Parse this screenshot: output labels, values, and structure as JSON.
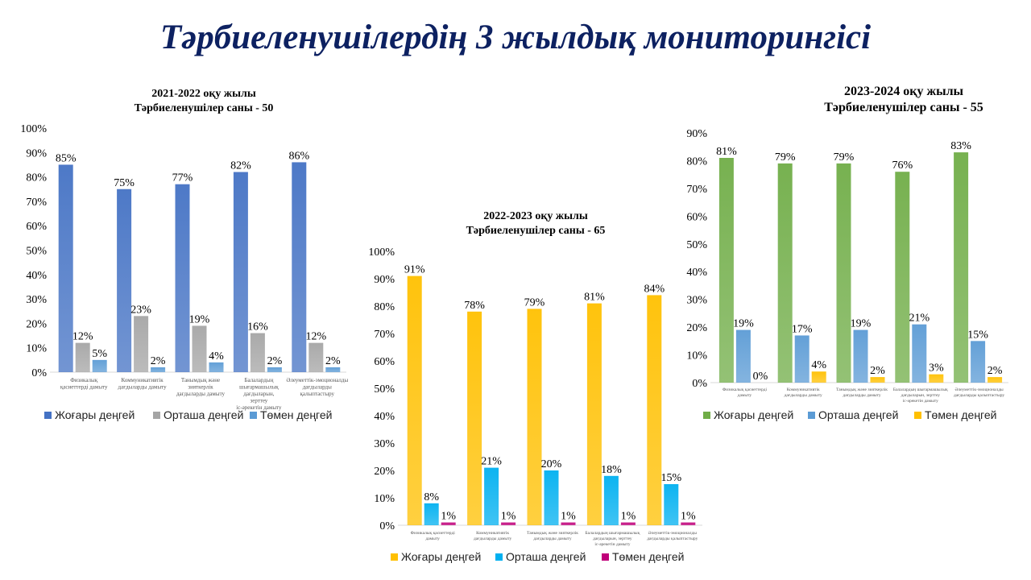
{
  "title": "Тәрбиеленушілердің 3 жылдық мониторингісі",
  "chart_data": [
    {
      "type": "bar",
      "title": [
        "2021-2022 оқу жылы",
        "Тәрбиеленушілер саны - 50"
      ],
      "categories": [
        "Физикалық қасиеттерді дамыту",
        "Коммуникативтік дағдыларды дамыту",
        "Танымдық және зияткерлік дағдыларды дамыту",
        "Балалардың шығармашылық дағдыларын, зерттеу іс-әрекетін дамыту",
        "Әлеуметтік-эмоционалды дағдыларды қалыптастыру"
      ],
      "ylim": [
        0,
        100
      ],
      "yticks": [
        "0%",
        "10%",
        "20%",
        "30%",
        "40%",
        "50%",
        "60%",
        "70%",
        "80%",
        "90%",
        "100%"
      ],
      "legend": "bottom",
      "series": [
        {
          "name": "Жоғары деңгей",
          "color": "#4472c4",
          "values": [
            85,
            75,
            77,
            82,
            86
          ],
          "labels": [
            "85%",
            "75%",
            "77%",
            "82%",
            "86%"
          ]
        },
        {
          "name": "Орташа деңгей",
          "color": "#a5a5a5",
          "values": [
            12,
            23,
            19,
            16,
            12
          ],
          "labels": [
            "12%",
            "23%",
            "19%",
            "16%",
            "12%"
          ]
        },
        {
          "name": "Төмен деңгей",
          "color": "#5b9bd5",
          "values": [
            5,
            2,
            4,
            2,
            2
          ],
          "labels": [
            "5%",
            "2%",
            "4%",
            "2%",
            "2%"
          ]
        }
      ]
    },
    {
      "type": "bar",
      "title": [
        "2022-2023 оқу жылы",
        "Тәрбиеленушілер саны - 65"
      ],
      "categories": [
        "Физикалық қасиеттерді дамыту",
        "Коммуникативтік дағдыларды дамыту",
        "Танымдық және зияткерлік дағдыларды дамыту",
        "Балалардың шығармашылық дағдыларын, зерттеу іс-әрекетін дамыту",
        "Әлеуметтік-эмоционалды дағдыларды қалыптастыру"
      ],
      "ylim": [
        0,
        100
      ],
      "yticks": [
        "0%",
        "10%",
        "20%",
        "30%",
        "40%",
        "50%",
        "60%",
        "70%",
        "80%",
        "90%",
        "100%"
      ],
      "legend": "bottom",
      "series": [
        {
          "name": "Жоғары деңгей",
          "color": "#ffc000",
          "values": [
            91,
            78,
            79,
            81,
            84
          ],
          "labels": [
            "91%",
            "78%",
            "79%",
            "81%",
            "84%"
          ]
        },
        {
          "name": "Орташа деңгей",
          "color": "#00b0f0",
          "values": [
            8,
            21,
            20,
            18,
            15
          ],
          "labels": [
            "8%",
            "21%",
            "20%",
            "18%",
            "15%"
          ]
        },
        {
          "name": "Төмен деңгей",
          "color": "#c0007a",
          "values": [
            1,
            1,
            1,
            1,
            1
          ],
          "labels": [
            "1%",
            "1%",
            "1%",
            "1%",
            "1%"
          ]
        }
      ]
    },
    {
      "type": "bar",
      "title": [
        "2023-2024 оқу жылы",
        "Тәрбиеленушілер саны - 55"
      ],
      "categories": [
        "Физикалық қасиеттерді дамыту",
        "Коммуникативтік дағдыларды дамыту",
        "Танымдық және зияткерлік дағдыларды дамыту",
        "Балалардың шығармашылық дағдыларын, зерттеу іс-әрекетін дамыту",
        "Әлеуметтік-эмоционалды дағдыларды қалыптастыру"
      ],
      "ylim": [
        0,
        90
      ],
      "yticks": [
        "0%",
        "10%",
        "20%",
        "30%",
        "40%",
        "50%",
        "60%",
        "70%",
        "80%",
        "90%"
      ],
      "legend": "bottom",
      "series": [
        {
          "name": "Жоғары деңгей",
          "color": "#70ad47",
          "values": [
            81,
            79,
            79,
            76,
            83
          ],
          "labels": [
            "81%",
            "79%",
            "79%",
            "76%",
            "83%"
          ]
        },
        {
          "name": "Орташа деңгей",
          "color": "#5b9bd5",
          "values": [
            19,
            17,
            19,
            21,
            15
          ],
          "labels": [
            "19%",
            "17%",
            "19%",
            "21%",
            "15%"
          ]
        },
        {
          "name": "Төмен деңгей",
          "color": "#ffc000",
          "values": [
            0,
            4,
            2,
            3,
            2
          ],
          "labels": [
            "0%",
            "4%",
            "2%",
            "3%",
            "2%"
          ]
        }
      ]
    }
  ]
}
